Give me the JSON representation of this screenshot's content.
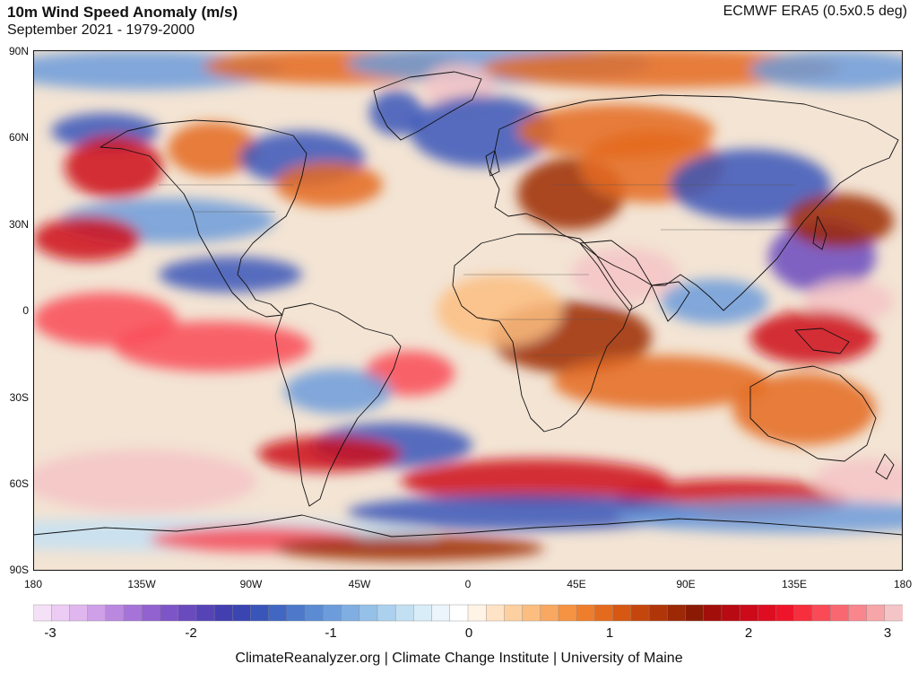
{
  "header": {
    "title": "10m Wind Speed Anomaly (m/s)",
    "subtitle": "September 2021 - 1979-2000",
    "source": "ECMWF ERA5 (0.5x0.5 deg)"
  },
  "axes": {
    "lat_labels": [
      "90N",
      "60N",
      "30N",
      "0",
      "30S",
      "60S",
      "90S"
    ],
    "lon_labels": [
      "180",
      "135W",
      "90W",
      "45W",
      "0",
      "45E",
      "90E",
      "135E",
      "180"
    ]
  },
  "colorbar": {
    "min": -3,
    "max": 3,
    "tick_labels": [
      "-3",
      "-2",
      "-1",
      "0",
      "1",
      "2",
      "3"
    ],
    "colors": [
      "#f5e1f7",
      "#ecccf3",
      "#dfb7ee",
      "#cfa0e8",
      "#bb88e0",
      "#a674d8",
      "#9262cf",
      "#7e55c6",
      "#6a4bbe",
      "#5644b7",
      "#433fb0",
      "#3a45b2",
      "#3a55b9",
      "#4267c2",
      "#4e79cb",
      "#5b8bd3",
      "#6c9cdb",
      "#80aee2",
      "#95c0e8",
      "#acd1ee",
      "#c3e0f3",
      "#d9edf8",
      "#ecf5fb",
      "#ffffff",
      "#fff4e6",
      "#ffe3c6",
      "#fdd0a2",
      "#fbbd80",
      "#f8a860",
      "#f49342",
      "#ef7e2c",
      "#e46a1e",
      "#d65813",
      "#c4460d",
      "#b03609",
      "#9c2806",
      "#8b1a05",
      "#a10f0a",
      "#b80a12",
      "#cc0a1a",
      "#de0d22",
      "#ee152b",
      "#f72e3d",
      "#f94a56",
      "#f96870",
      "#f8868c",
      "#f6a5a9",
      "#f4c4c6"
    ]
  },
  "footer": {
    "text": "ClimateReanalyzer.org | Climate Change Institute | University of Maine"
  }
}
